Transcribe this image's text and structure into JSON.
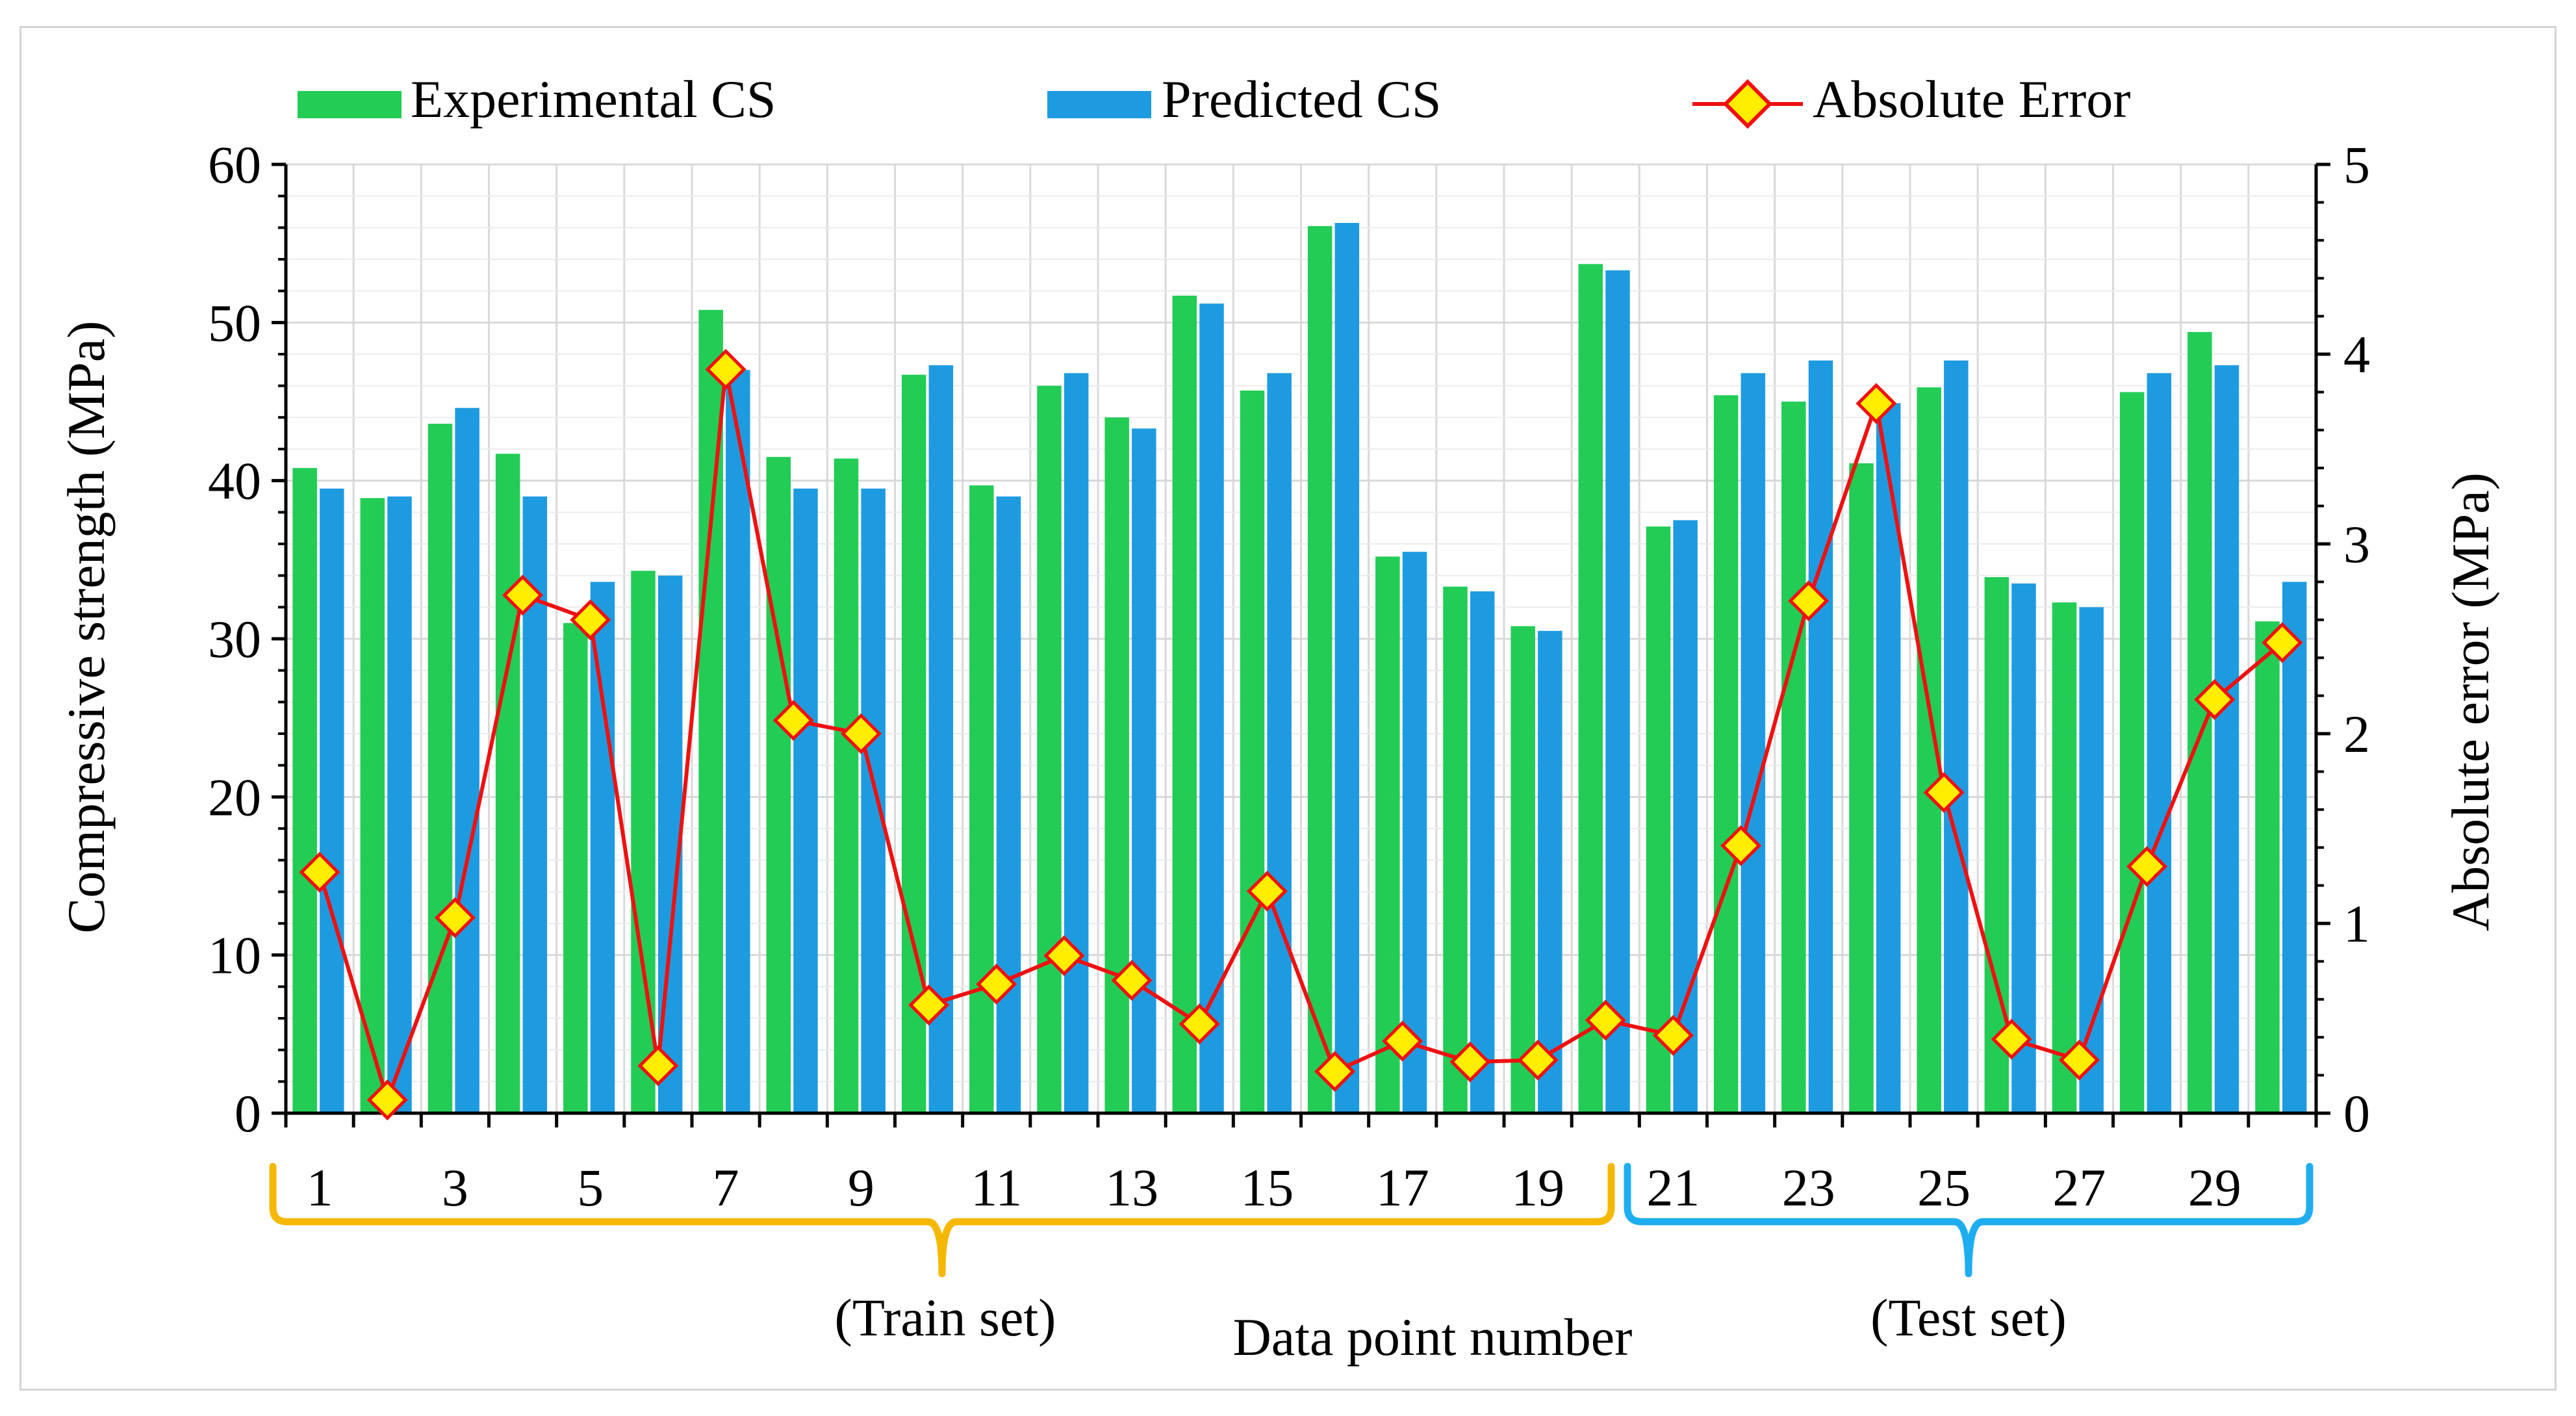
{
  "colors": {
    "experimental": "#22CC55",
    "predicted": "#1E9BE0",
    "error_line": "#EE1111",
    "error_marker_fill": "#FFEE00",
    "train_brace": "#F5B800",
    "test_brace": "#1EAEF0"
  },
  "chart_data": {
    "type": "bar",
    "title": "",
    "xlabel": "Data point number",
    "ylabel": "Compressive strength (MPa)",
    "y2label": "Absolute error (MPa)",
    "ylim": [
      0,
      60
    ],
    "y2lim": [
      0,
      5
    ],
    "yticks": [
      "0",
      "10",
      "20",
      "30",
      "40",
      "50",
      "60"
    ],
    "y2ticks": [
      "0",
      "1",
      "2",
      "3",
      "4",
      "5"
    ],
    "categories": [
      "1",
      "2",
      "3",
      "4",
      "5",
      "6",
      "7",
      "8",
      "9",
      "10",
      "11",
      "12",
      "13",
      "14",
      "15",
      "16",
      "17",
      "18",
      "19",
      "20",
      "21",
      "22",
      "23",
      "24",
      "25",
      "26",
      "27",
      "28",
      "29",
      "30"
    ],
    "xtick_labels": [
      "1",
      "3",
      "5",
      "7",
      "9",
      "11",
      "13",
      "15",
      "17",
      "19",
      "21",
      "23",
      "25",
      "27",
      "29"
    ],
    "legend": {
      "position": "top",
      "experimental": "Experimental CS",
      "predicted": "Predicted CS",
      "error": "Absolute Error"
    },
    "series": [
      {
        "name": "Experimental CS",
        "axis": "left",
        "values": [
          40.8,
          38.9,
          43.6,
          41.7,
          31.0,
          34.3,
          50.8,
          41.5,
          41.4,
          46.7,
          39.7,
          46.0,
          44.0,
          51.7,
          45.7,
          56.1,
          35.2,
          33.3,
          30.8,
          53.7,
          37.1,
          45.4,
          45.0,
          41.1,
          45.9,
          33.9,
          32.3,
          45.6,
          49.4,
          31.1
        ]
      },
      {
        "name": "Predicted CS",
        "axis": "left",
        "values": [
          39.5,
          39.0,
          44.6,
          39.0,
          33.6,
          34.0,
          47.0,
          39.5,
          39.5,
          47.3,
          39.0,
          46.8,
          43.3,
          51.2,
          46.8,
          56.3,
          35.5,
          33.0,
          30.5,
          53.3,
          37.5,
          46.8,
          47.6,
          44.9,
          47.6,
          33.5,
          32.0,
          46.8,
          47.3,
          33.6
        ]
      },
      {
        "name": "Absolute Error",
        "axis": "right",
        "type": "line",
        "values": [
          1.27,
          0.07,
          1.03,
          2.73,
          2.6,
          0.25,
          3.92,
          2.07,
          2.0,
          0.57,
          0.68,
          0.83,
          0.7,
          0.47,
          1.17,
          0.22,
          0.38,
          0.27,
          0.28,
          0.49,
          0.41,
          1.41,
          2.7,
          3.74,
          1.69,
          0.39,
          0.28,
          1.3,
          2.18,
          2.48
        ]
      }
    ],
    "groups": [
      {
        "label": "(Train set)",
        "from": 1,
        "to": 20
      },
      {
        "label": "(Test set)",
        "from": 21,
        "to": 30
      }
    ]
  }
}
